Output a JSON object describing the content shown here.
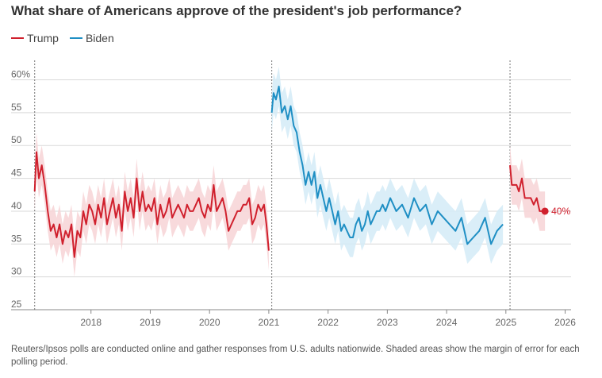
{
  "title": "What share of Americans approve of the president's job performance?",
  "legend": [
    {
      "label": "Trump",
      "color": "#d0202d"
    },
    {
      "label": "Biden",
      "color": "#1f8fc4"
    }
  ],
  "note": "Reuters/Ipsos polls are conducted online and gather responses from U.S. adults nationwide. Shaded areas show the margin of error for each polling period.",
  "chart_data": {
    "type": "line",
    "title": "What share of Americans approve of the president's job performance?",
    "xlabel": "",
    "ylabel": "",
    "xlim": [
      2017.0,
      2026.1
    ],
    "ylim": [
      25,
      62
    ],
    "y_ticks": [
      {
        "value": 25,
        "label": "25"
      },
      {
        "value": 30,
        "label": "30"
      },
      {
        "value": 35,
        "label": "35"
      },
      {
        "value": 40,
        "label": "40"
      },
      {
        "value": 45,
        "label": "45"
      },
      {
        "value": 50,
        "label": "50"
      },
      {
        "value": 55,
        "label": "55"
      },
      {
        "value": 60,
        "label": "60%"
      }
    ],
    "x_ticks": [
      {
        "value": 2018,
        "label": "2018"
      },
      {
        "value": 2019,
        "label": "2019"
      },
      {
        "value": 2020,
        "label": "2020"
      },
      {
        "value": 2021,
        "label": "2021"
      },
      {
        "value": 2022,
        "label": "2022"
      },
      {
        "value": 2023,
        "label": "2023"
      },
      {
        "value": 2024,
        "label": "2024"
      },
      {
        "value": 2025,
        "label": "2025"
      },
      {
        "value": 2026,
        "label": "2026"
      }
    ],
    "term_starts": [
      2017.05,
      2021.05,
      2025.07
    ],
    "grid": true,
    "legend_position": "top-left",
    "margin_of_error": 3,
    "end_label": {
      "series": "Trump",
      "text": "40%",
      "x": 2025.66,
      "y": 40
    },
    "series": [
      {
        "name": "Trump",
        "color": "#d0202d",
        "x": [
          2017.05,
          2017.08,
          2017.12,
          2017.17,
          2017.22,
          2017.27,
          2017.32,
          2017.37,
          2017.42,
          2017.47,
          2017.52,
          2017.57,
          2017.62,
          2017.67,
          2017.72,
          2017.77,
          2017.82,
          2017.87,
          2017.92,
          2017.97,
          2018.02,
          2018.07,
          2018.12,
          2018.17,
          2018.22,
          2018.27,
          2018.32,
          2018.37,
          2018.42,
          2018.47,
          2018.52,
          2018.57,
          2018.62,
          2018.67,
          2018.72,
          2018.77,
          2018.82,
          2018.87,
          2018.92,
          2018.97,
          2019.02,
          2019.07,
          2019.12,
          2019.17,
          2019.22,
          2019.27,
          2019.32,
          2019.37,
          2019.42,
          2019.47,
          2019.52,
          2019.57,
          2019.62,
          2019.67,
          2019.72,
          2019.77,
          2019.82,
          2019.87,
          2019.92,
          2019.97,
          2020.02,
          2020.07,
          2020.12,
          2020.17,
          2020.22,
          2020.27,
          2020.32,
          2020.37,
          2020.42,
          2020.47,
          2020.52,
          2020.57,
          2020.62,
          2020.67,
          2020.72,
          2020.77,
          2020.82,
          2020.87,
          2020.92,
          2020.96,
          2021.0,
          2025.07,
          2025.1,
          2025.14,
          2025.18,
          2025.22,
          2025.27,
          2025.32,
          2025.37,
          2025.42,
          2025.47,
          2025.52,
          2025.57,
          2025.62,
          2025.66
        ],
        "values": [
          43,
          49,
          45,
          47,
          44,
          40,
          37,
          38,
          36,
          38,
          35,
          37,
          36,
          38,
          33,
          37,
          36,
          40,
          38,
          41,
          40,
          38,
          41,
          39,
          42,
          38,
          40,
          42,
          39,
          41,
          37,
          43,
          40,
          42,
          39,
          45,
          40,
          43,
          40,
          41,
          40,
          42,
          38,
          41,
          39,
          40,
          42,
          39,
          40,
          41,
          40,
          39,
          41,
          40,
          40,
          41,
          42,
          40,
          39,
          41,
          40,
          44,
          40,
          41,
          42,
          40,
          37,
          38,
          39,
          40,
          40,
          41,
          41,
          42,
          38,
          39,
          41,
          40,
          41,
          38,
          34,
          47,
          44,
          44,
          44,
          43,
          45,
          42,
          42,
          42,
          41,
          42,
          40,
          40,
          40
        ]
      },
      {
        "name": "Biden",
        "color": "#1f8fc4",
        "x": [
          2021.05,
          2021.08,
          2021.12,
          2021.17,
          2021.22,
          2021.27,
          2021.32,
          2021.37,
          2021.42,
          2021.47,
          2021.52,
          2021.57,
          2021.62,
          2021.67,
          2021.72,
          2021.77,
          2021.82,
          2021.87,
          2021.92,
          2021.97,
          2022.02,
          2022.07,
          2022.12,
          2022.17,
          2022.22,
          2022.27,
          2022.32,
          2022.37,
          2022.42,
          2022.47,
          2022.52,
          2022.57,
          2022.62,
          2022.67,
          2022.72,
          2022.77,
          2022.82,
          2022.87,
          2022.92,
          2022.97,
          2023.05,
          2023.15,
          2023.25,
          2023.35,
          2023.45,
          2023.55,
          2023.65,
          2023.75,
          2023.85,
          2023.95,
          2024.05,
          2024.15,
          2024.25,
          2024.35,
          2024.45,
          2024.55,
          2024.65,
          2024.75,
          2024.85,
          2024.95
        ],
        "values": [
          55,
          58,
          57,
          59,
          55,
          56,
          54,
          56,
          53,
          52,
          49,
          47,
          44,
          46,
          44,
          46,
          42,
          44,
          42,
          40,
          42,
          40,
          38,
          40,
          37,
          38,
          37,
          36,
          36,
          38,
          39,
          37,
          38,
          40,
          38,
          39,
          40,
          40,
          41,
          40,
          42,
          40,
          41,
          39,
          42,
          40,
          41,
          38,
          40,
          39,
          38,
          37,
          39,
          35,
          36,
          37,
          39,
          35,
          37,
          38
        ]
      }
    ]
  }
}
